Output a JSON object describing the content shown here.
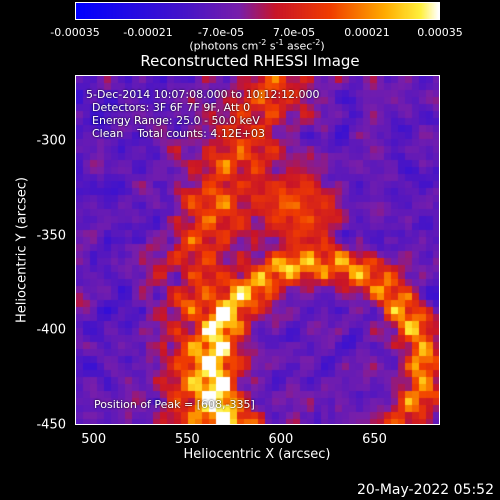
{
  "chart_data": {
    "type": "heatmap",
    "title": "Reconstructed RHESSI Image",
    "xlabel": "Heliocentric X (arcsec)",
    "ylabel": "Heliocentric Y (arcsec)",
    "xlim": [
      490,
      685
    ],
    "ylim": [
      -450,
      -265
    ],
    "x_ticks": [
      "500",
      "550",
      "600",
      "650"
    ],
    "x_tick_values": [
      500,
      550,
      600,
      650
    ],
    "y_ticks": [
      "-300",
      "-350",
      "-400",
      "-450"
    ],
    "y_tick_values": [
      -300,
      -350,
      -400,
      -450
    ],
    "colorbar": {
      "ticks": [
        "-0.00035",
        "-0.00021",
        "-7.0e-05",
        "7.0e-05",
        "0.00021",
        "0.00035"
      ],
      "tick_values": [
        -0.00035,
        -0.00021,
        -7e-05,
        7e-05,
        0.00021,
        0.00035
      ],
      "range": [
        -0.00035,
        0.00035
      ],
      "unit_prefix": "(photons cm",
      "unit_exp1": "-2",
      "unit_mid1": " s",
      "unit_exp2": "-1",
      "unit_mid2": " asec",
      "unit_exp3": "-2",
      "unit_suffix": ")"
    },
    "annotations": {
      "time_range": "5-Dec-2014 10:07:08.000 to 10:12:12.000",
      "detectors": "Detectors: 3F 6F 7F 9F, Att 0",
      "energy": "Energy Range: 25.0 - 50.0 keV",
      "clean": "Clean    Total counts: 4.12E+03",
      "peak": "Position of Peak = [608,-335]"
    },
    "peak": [
      608,
      -335
    ]
  },
  "footer": "20-May-2022 05:52"
}
